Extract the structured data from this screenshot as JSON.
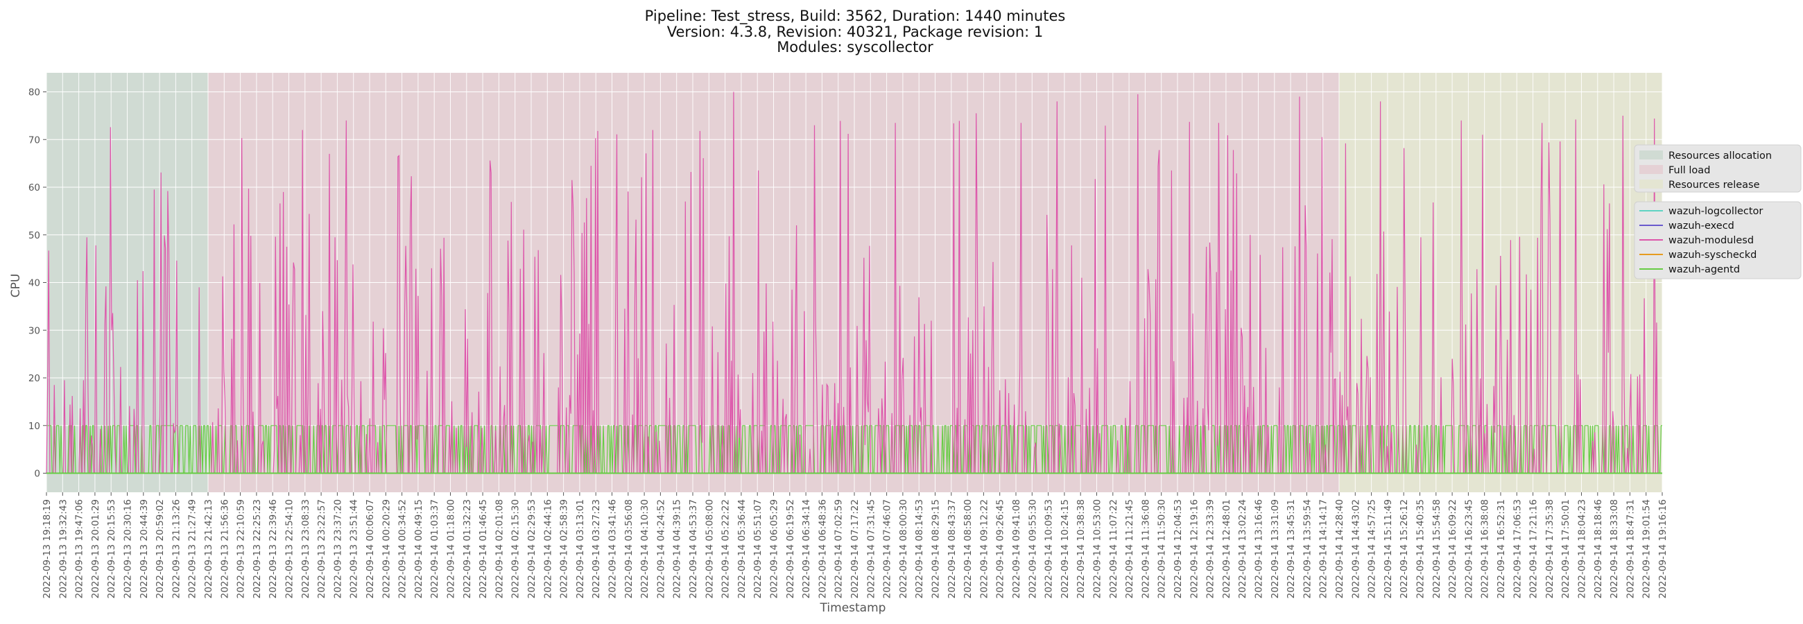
{
  "chart_data": {
    "type": "line",
    "title_lines": [
      "Pipeline: Test_stress, Build: 3562, Duration: 1440 minutes",
      "Version: 4.3.8, Revision: 40321, Package revision: 1",
      "Modules: syscollector"
    ],
    "xlabel": "Timestamp",
    "ylabel": "CPU",
    "ylim": [
      -4,
      84
    ],
    "yticks": [
      0,
      10,
      20,
      30,
      40,
      50,
      60,
      70,
      80
    ],
    "grid": true,
    "legend_placement": "right",
    "x_tick_labels": [
      "2022-09-13 19:18:19",
      "2022-09-13 19:32:43",
      "2022-09-13 19:47:06",
      "2022-09-13 20:01:29",
      "2022-09-13 20:15:53",
      "2022-09-13 20:30:16",
      "2022-09-13 20:44:39",
      "2022-09-13 20:59:02",
      "2022-09-13 21:13:26",
      "2022-09-13 21:27:49",
      "2022-09-13 21:42:13",
      "2022-09-13 21:56:36",
      "2022-09-13 22:10:59",
      "2022-09-13 22:25:23",
      "2022-09-13 22:39:46",
      "2022-09-13 22:54:10",
      "2022-09-13 23:08:33",
      "2022-09-13 23:22:57",
      "2022-09-13 23:37:20",
      "2022-09-13 23:51:44",
      "2022-09-14 00:06:07",
      "2022-09-14 00:20:29",
      "2022-09-14 00:34:52",
      "2022-09-14 00:49:15",
      "2022-09-14 01:03:37",
      "2022-09-14 01:18:00",
      "2022-09-14 01:32:23",
      "2022-09-14 01:46:45",
      "2022-09-14 02:01:08",
      "2022-09-14 02:15:30",
      "2022-09-14 02:29:53",
      "2022-09-14 02:44:16",
      "2022-09-14 02:58:39",
      "2022-09-14 03:13:01",
      "2022-09-14 03:27:23",
      "2022-09-14 03:41:46",
      "2022-09-14 03:56:08",
      "2022-09-14 04:10:30",
      "2022-09-14 04:24:52",
      "2022-09-14 04:39:15",
      "2022-09-14 04:53:37",
      "2022-09-14 05:08:00",
      "2022-09-14 05:22:22",
      "2022-09-14 05:36:44",
      "2022-09-14 05:51:07",
      "2022-09-14 06:05:29",
      "2022-09-14 06:19:52",
      "2022-09-14 06:34:14",
      "2022-09-14 06:48:36",
      "2022-09-14 07:02:59",
      "2022-09-14 07:17:22",
      "2022-09-14 07:31:45",
      "2022-09-14 07:46:07",
      "2022-09-14 08:00:30",
      "2022-09-14 08:14:53",
      "2022-09-14 08:29:15",
      "2022-09-14 08:43:37",
      "2022-09-14 08:58:00",
      "2022-09-14 09:12:22",
      "2022-09-14 09:26:45",
      "2022-09-14 09:41:08",
      "2022-09-14 09:55:30",
      "2022-09-14 10:09:53",
      "2022-09-14 10:24:15",
      "2022-09-14 10:38:38",
      "2022-09-14 10:53:00",
      "2022-09-14 11:07:22",
      "2022-09-14 11:21:45",
      "2022-09-14 11:36:08",
      "2022-09-14 11:50:30",
      "2022-09-14 12:04:53",
      "2022-09-14 12:19:16",
      "2022-09-14 12:33:39",
      "2022-09-14 12:48:01",
      "2022-09-14 13:02:24",
      "2022-09-14 13:16:46",
      "2022-09-14 13:31:09",
      "2022-09-14 13:45:31",
      "2022-09-14 13:59:54",
      "2022-09-14 14:14:17",
      "2022-09-14 14:28:40",
      "2022-09-14 14:43:02",
      "2022-09-14 14:57:25",
      "2022-09-14 15:11:49",
      "2022-09-14 15:26:12",
      "2022-09-14 15:40:35",
      "2022-09-14 15:54:58",
      "2022-09-14 16:09:22",
      "2022-09-14 16:23:45",
      "2022-09-14 16:38:08",
      "2022-09-14 16:52:31",
      "2022-09-14 17:06:53",
      "2022-09-14 17:21:16",
      "2022-09-14 17:35:38",
      "2022-09-14 17:50:01",
      "2022-09-14 18:04:23",
      "2022-09-14 18:18:46",
      "2022-09-14 18:33:08",
      "2022-09-14 18:47:31",
      "2022-09-14 19:01:54",
      "2022-09-14 19:16:16"
    ],
    "phases": [
      {
        "name": "Resources allocation",
        "start": "2022-09-13 19:18:19",
        "end": "2022-09-13 21:42:13",
        "color": "#9fc5a8"
      },
      {
        "name": "Full load",
        "start": "2022-09-13 21:42:13",
        "end": "2022-09-14 14:28:40",
        "color": "#e6a3b0"
      },
      {
        "name": "Resources release",
        "start": "2022-09-14 14:28:40",
        "end": "2022-09-14 19:16:16",
        "color": "#e0e6a6"
      }
    ],
    "series": [
      {
        "name": "wazuh-logcollector",
        "color": "#5fd3c2",
        "description_values": "constant 0"
      },
      {
        "name": "wazuh-execd",
        "color": "#6a5acd",
        "description_values": "constant 0"
      },
      {
        "name": "wazuh-modulesd",
        "color": "#dd55aa",
        "peaks_sample": [
          49.5,
          59.2,
          59.7,
          67,
          53,
          63,
          61.5,
          72,
          80,
          73,
          73.5,
          75.5,
          78,
          79.5,
          73.5,
          79,
          78,
          74,
          73.5,
          75
        ]
      },
      {
        "name": "wazuh-syscheckd",
        "color": "#e69b20",
        "description_values": "constant 0"
      },
      {
        "name": "wazuh-agentd",
        "color": "#66cc44",
        "levels": [
          0,
          10
        ]
      }
    ]
  }
}
